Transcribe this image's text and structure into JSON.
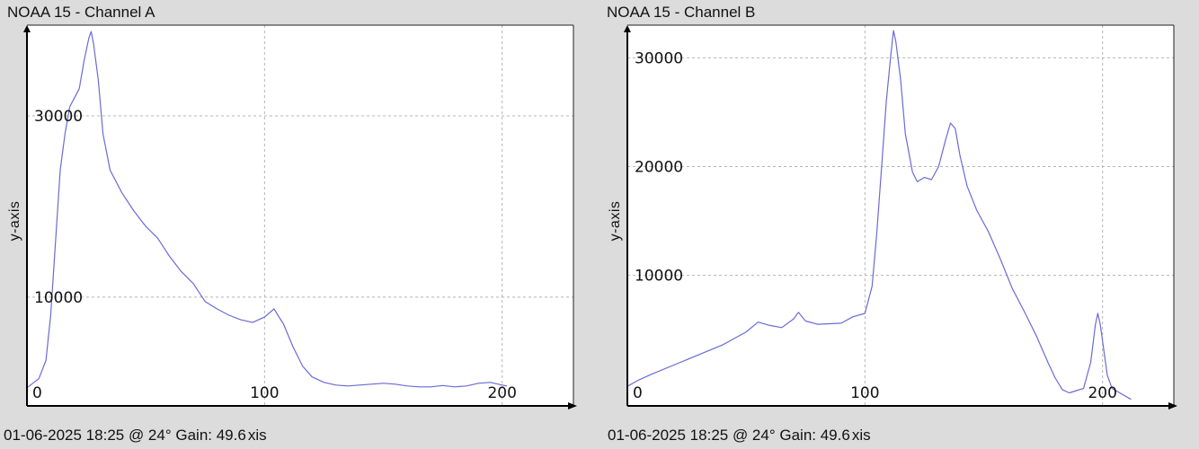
{
  "chart_data": [
    {
      "type": "line",
      "title": "NOAA 15 - Channel A",
      "ylabel": "y-axis",
      "footer": "01-06-2025 18:25 @ 24° Gain: 49.6",
      "footer_suffix": "xis",
      "line_color": "#6a6ad8",
      "grid": true,
      "xlim": [
        0,
        230
      ],
      "ylim": [
        -2000,
        40000
      ],
      "x_ticks": [
        0,
        100,
        200
      ],
      "x_tick_labels": [
        "0",
        "100",
        "200"
      ],
      "y_ticks": [
        10000,
        30000
      ],
      "y_tick_labels": [
        "10000",
        "30000"
      ],
      "points": [
        [
          0,
          0
        ],
        [
          5,
          1000
        ],
        [
          8,
          3000
        ],
        [
          10,
          8000
        ],
        [
          12,
          16000
        ],
        [
          14,
          24000
        ],
        [
          16,
          28000
        ],
        [
          18,
          31000
        ],
        [
          20,
          32000
        ],
        [
          22,
          33000
        ],
        [
          24,
          36000
        ],
        [
          26,
          38500
        ],
        [
          27,
          39300
        ],
        [
          28,
          38000
        ],
        [
          30,
          34000
        ],
        [
          32,
          28000
        ],
        [
          35,
          24000
        ],
        [
          40,
          21500
        ],
        [
          45,
          19500
        ],
        [
          50,
          17800
        ],
        [
          55,
          16500
        ],
        [
          60,
          14500
        ],
        [
          65,
          12800
        ],
        [
          70,
          11500
        ],
        [
          75,
          9500
        ],
        [
          80,
          8700
        ],
        [
          85,
          8000
        ],
        [
          90,
          7500
        ],
        [
          95,
          7200
        ],
        [
          100,
          7800
        ],
        [
          104,
          8700
        ],
        [
          108,
          7000
        ],
        [
          112,
          4500
        ],
        [
          116,
          2400
        ],
        [
          120,
          1200
        ],
        [
          125,
          600
        ],
        [
          130,
          300
        ],
        [
          135,
          200
        ],
        [
          140,
          300
        ],
        [
          150,
          500
        ],
        [
          155,
          400
        ],
        [
          160,
          200
        ],
        [
          165,
          100
        ],
        [
          170,
          100
        ],
        [
          175,
          250
        ],
        [
          180,
          100
        ],
        [
          185,
          200
        ],
        [
          190,
          500
        ],
        [
          195,
          600
        ],
        [
          200,
          300
        ],
        [
          202,
          200
        ]
      ]
    },
    {
      "type": "line",
      "title": "NOAA 15 - Channel B",
      "ylabel": "y-axis",
      "footer": "01-06-2025 18:25 @ 24° Gain: 49.6",
      "footer_suffix": "xis",
      "line_color": "#6a6ad8",
      "grid": true,
      "xlim": [
        0,
        230
      ],
      "ylim": [
        -2000,
        33000
      ],
      "x_ticks": [
        0,
        100,
        200
      ],
      "x_tick_labels": [
        "0",
        "100",
        "200"
      ],
      "y_ticks": [
        10000,
        20000,
        30000
      ],
      "y_tick_labels": [
        "10000",
        "20000",
        "30000"
      ],
      "points": [
        [
          0,
          -200
        ],
        [
          5,
          400
        ],
        [
          10,
          900
        ],
        [
          20,
          1800
        ],
        [
          30,
          2700
        ],
        [
          40,
          3600
        ],
        [
          50,
          4800
        ],
        [
          55,
          5700
        ],
        [
          60,
          5400
        ],
        [
          65,
          5200
        ],
        [
          70,
          6000
        ],
        [
          72,
          6600
        ],
        [
          75,
          5800
        ],
        [
          80,
          5500
        ],
        [
          90,
          5600
        ],
        [
          95,
          6200
        ],
        [
          100,
          6500
        ],
        [
          103,
          9000
        ],
        [
          105,
          14000
        ],
        [
          107,
          20000
        ],
        [
          109,
          26000
        ],
        [
          111,
          30500
        ],
        [
          112,
          32500
        ],
        [
          113,
          31500
        ],
        [
          115,
          28000
        ],
        [
          117,
          23000
        ],
        [
          120,
          19500
        ],
        [
          122,
          18600
        ],
        [
          125,
          19000
        ],
        [
          128,
          18800
        ],
        [
          131,
          20000
        ],
        [
          134,
          22500
        ],
        [
          136,
          24000
        ],
        [
          138,
          23500
        ],
        [
          140,
          21000
        ],
        [
          143,
          18200
        ],
        [
          147,
          16000
        ],
        [
          152,
          14000
        ],
        [
          157,
          11500
        ],
        [
          162,
          8800
        ],
        [
          167,
          6700
        ],
        [
          172,
          4500
        ],
        [
          177,
          2000
        ],
        [
          180,
          600
        ],
        [
          183,
          -500
        ],
        [
          186,
          -800
        ],
        [
          189,
          -600
        ],
        [
          192,
          -400
        ],
        [
          195,
          2000
        ],
        [
          197,
          5500
        ],
        [
          198,
          6500
        ],
        [
          199,
          5500
        ],
        [
          202,
          800
        ],
        [
          204,
          -400
        ],
        [
          212,
          -1400
        ]
      ]
    }
  ]
}
